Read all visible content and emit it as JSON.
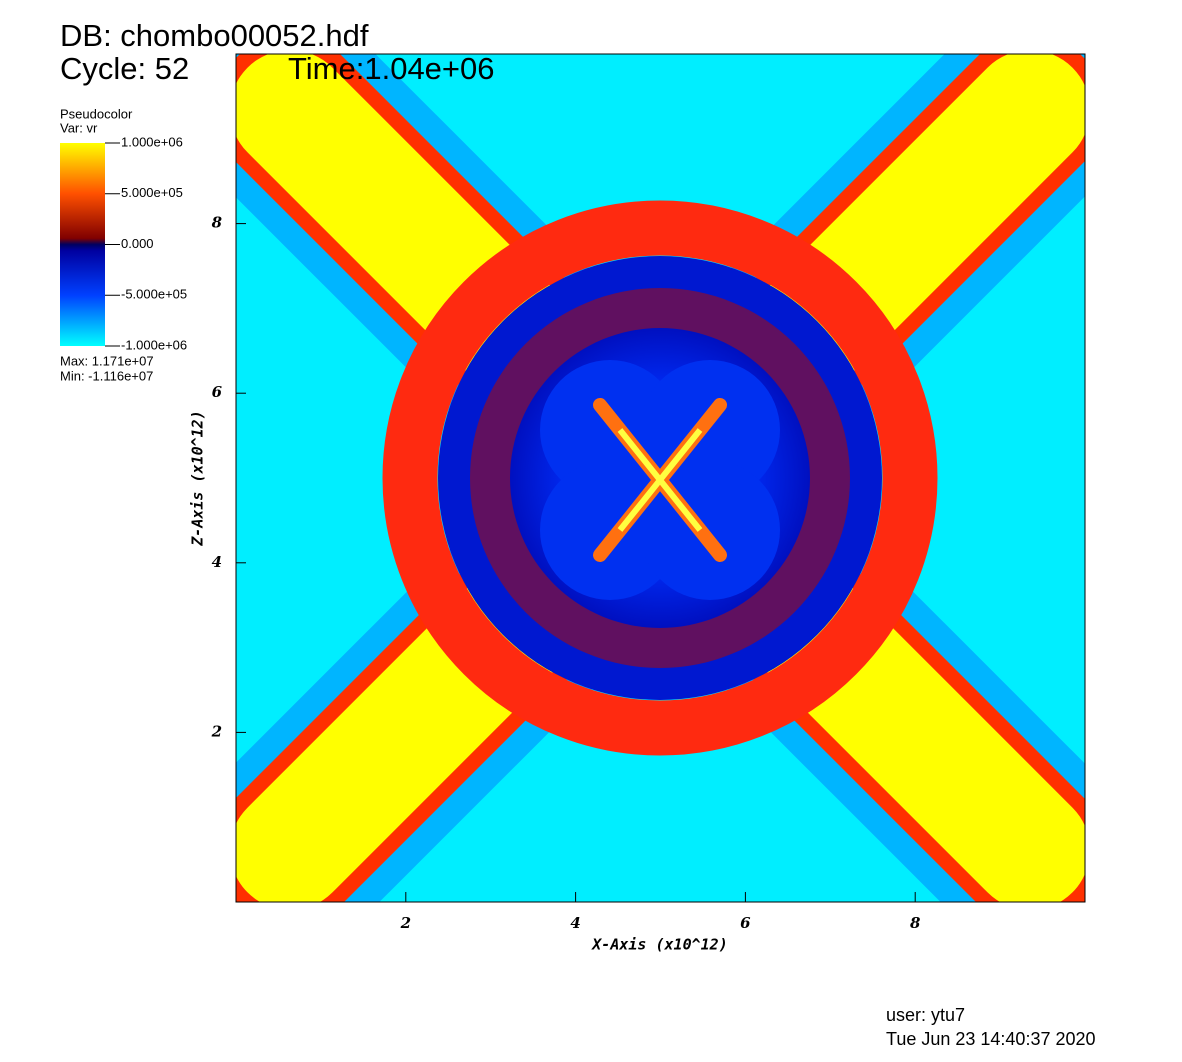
{
  "chart_data": {
    "type": "pseudocolor",
    "db": "DB: chombo00052.hdf",
    "cycle": "Cycle: 52",
    "time": "Time:1.04e+06",
    "legend_title": "Pseudocolor",
    "variable": "Var: vr",
    "clim": [
      -1000000,
      1000000
    ],
    "cticks": [
      {
        "value": 1000000,
        "label": "1.000e+06"
      },
      {
        "value": 500000,
        "label": "5.000e+05"
      },
      {
        "value": 0,
        "label": "0.000"
      },
      {
        "value": -500000,
        "label": "-5.000e+05"
      },
      {
        "value": -1000000,
        "label": "-1.000e+06"
      }
    ],
    "max_label": "Max:  1.171e+07",
    "min_label": "Min: -1.116e+07",
    "x_label": "X-Axis (x10^12)",
    "y_label": "Z-Axis (x10^12)",
    "xlim": [
      0,
      10
    ],
    "xticks": [
      2,
      4,
      6,
      8
    ],
    "ylim": [
      0,
      10
    ],
    "yticks": [
      2,
      4,
      6,
      8
    ],
    "user": "user: ytu7",
    "date": "Tue Jun 23 14:40:37 2020"
  }
}
